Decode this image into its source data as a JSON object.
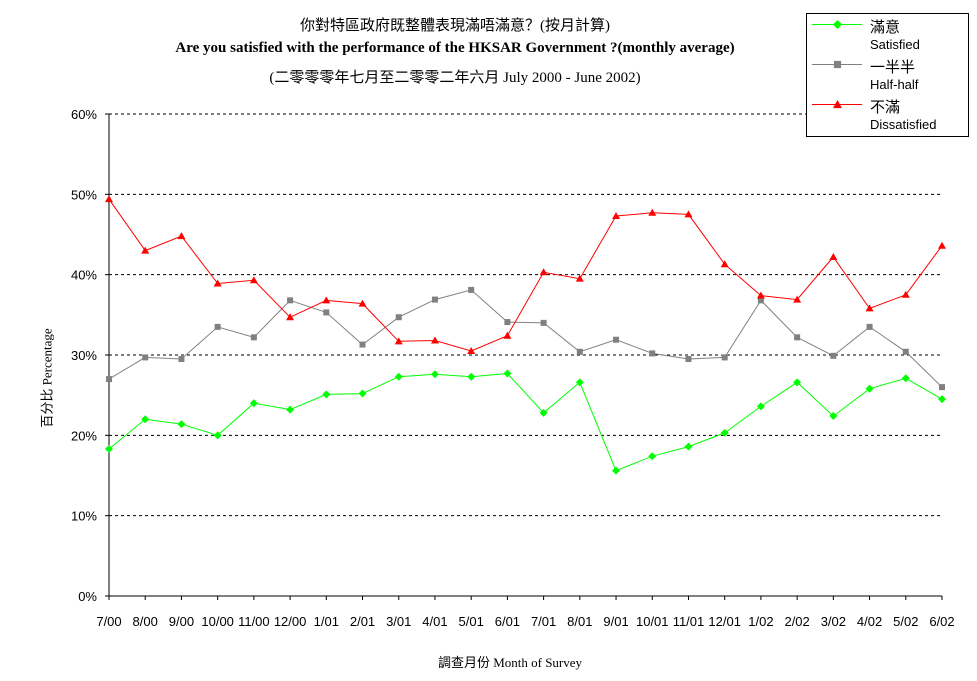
{
  "chart_data": {
    "type": "line",
    "title": "你對特區政府既整體表現滿唔滿意？(按月計算)",
    "subtitle": "Are you satisfied with the performance of the HKSAR Government ?(monthly average)",
    "subtitle2": "(二零零零年七月至二零零二年六月 July 2000 - June 2002)",
    "xlabel": "調查月份 Month of Survey",
    "ylabel": "百分比 Percentage",
    "categories": [
      "7/00",
      "8/00",
      "9/00",
      "10/00",
      "11/00",
      "12/00",
      "1/01",
      "2/01",
      "3/01",
      "4/01",
      "5/01",
      "6/01",
      "7/01",
      "8/01",
      "9/01",
      "10/01",
      "11/01",
      "12/01",
      "1/02",
      "2/02",
      "3/02",
      "4/02",
      "5/02",
      "6/02"
    ],
    "ylim": [
      0,
      60
    ],
    "yticks": [
      "0%",
      "10%",
      "20%",
      "30%",
      "40%",
      "50%",
      "60%"
    ],
    "grid": true,
    "legend_position": "top-right",
    "series": [
      {
        "name": "滿意",
        "name_en": "Satisfied",
        "color": "#00ff00",
        "marker": "diamond",
        "values": [
          18.3,
          22.0,
          21.4,
          20.0,
          24.0,
          23.2,
          25.1,
          25.2,
          27.3,
          27.6,
          27.3,
          27.7,
          22.8,
          26.6,
          15.6,
          17.4,
          18.6,
          20.3,
          23.6,
          26.6,
          22.4,
          25.8,
          27.1,
          24.5
        ]
      },
      {
        "name": "一半半",
        "name_en": "Half-half",
        "color": "#808080",
        "marker": "square",
        "values": [
          27.0,
          29.7,
          29.5,
          33.5,
          32.2,
          36.8,
          35.3,
          31.3,
          34.7,
          36.9,
          38.1,
          34.1,
          34.0,
          30.4,
          31.9,
          30.2,
          29.5,
          29.7,
          36.8,
          32.2,
          29.9,
          33.5,
          30.4,
          26.0
        ]
      },
      {
        "name": "不滿",
        "name_en": "Dissatisfied",
        "color": "#ff0000",
        "marker": "triangle",
        "values": [
          49.4,
          43.0,
          44.8,
          38.9,
          39.3,
          34.7,
          36.8,
          36.4,
          31.7,
          31.8,
          30.5,
          32.4,
          40.3,
          39.5,
          47.3,
          47.7,
          47.5,
          41.3,
          37.4,
          36.9,
          42.2,
          35.8,
          37.5,
          43.6
        ]
      }
    ]
  }
}
